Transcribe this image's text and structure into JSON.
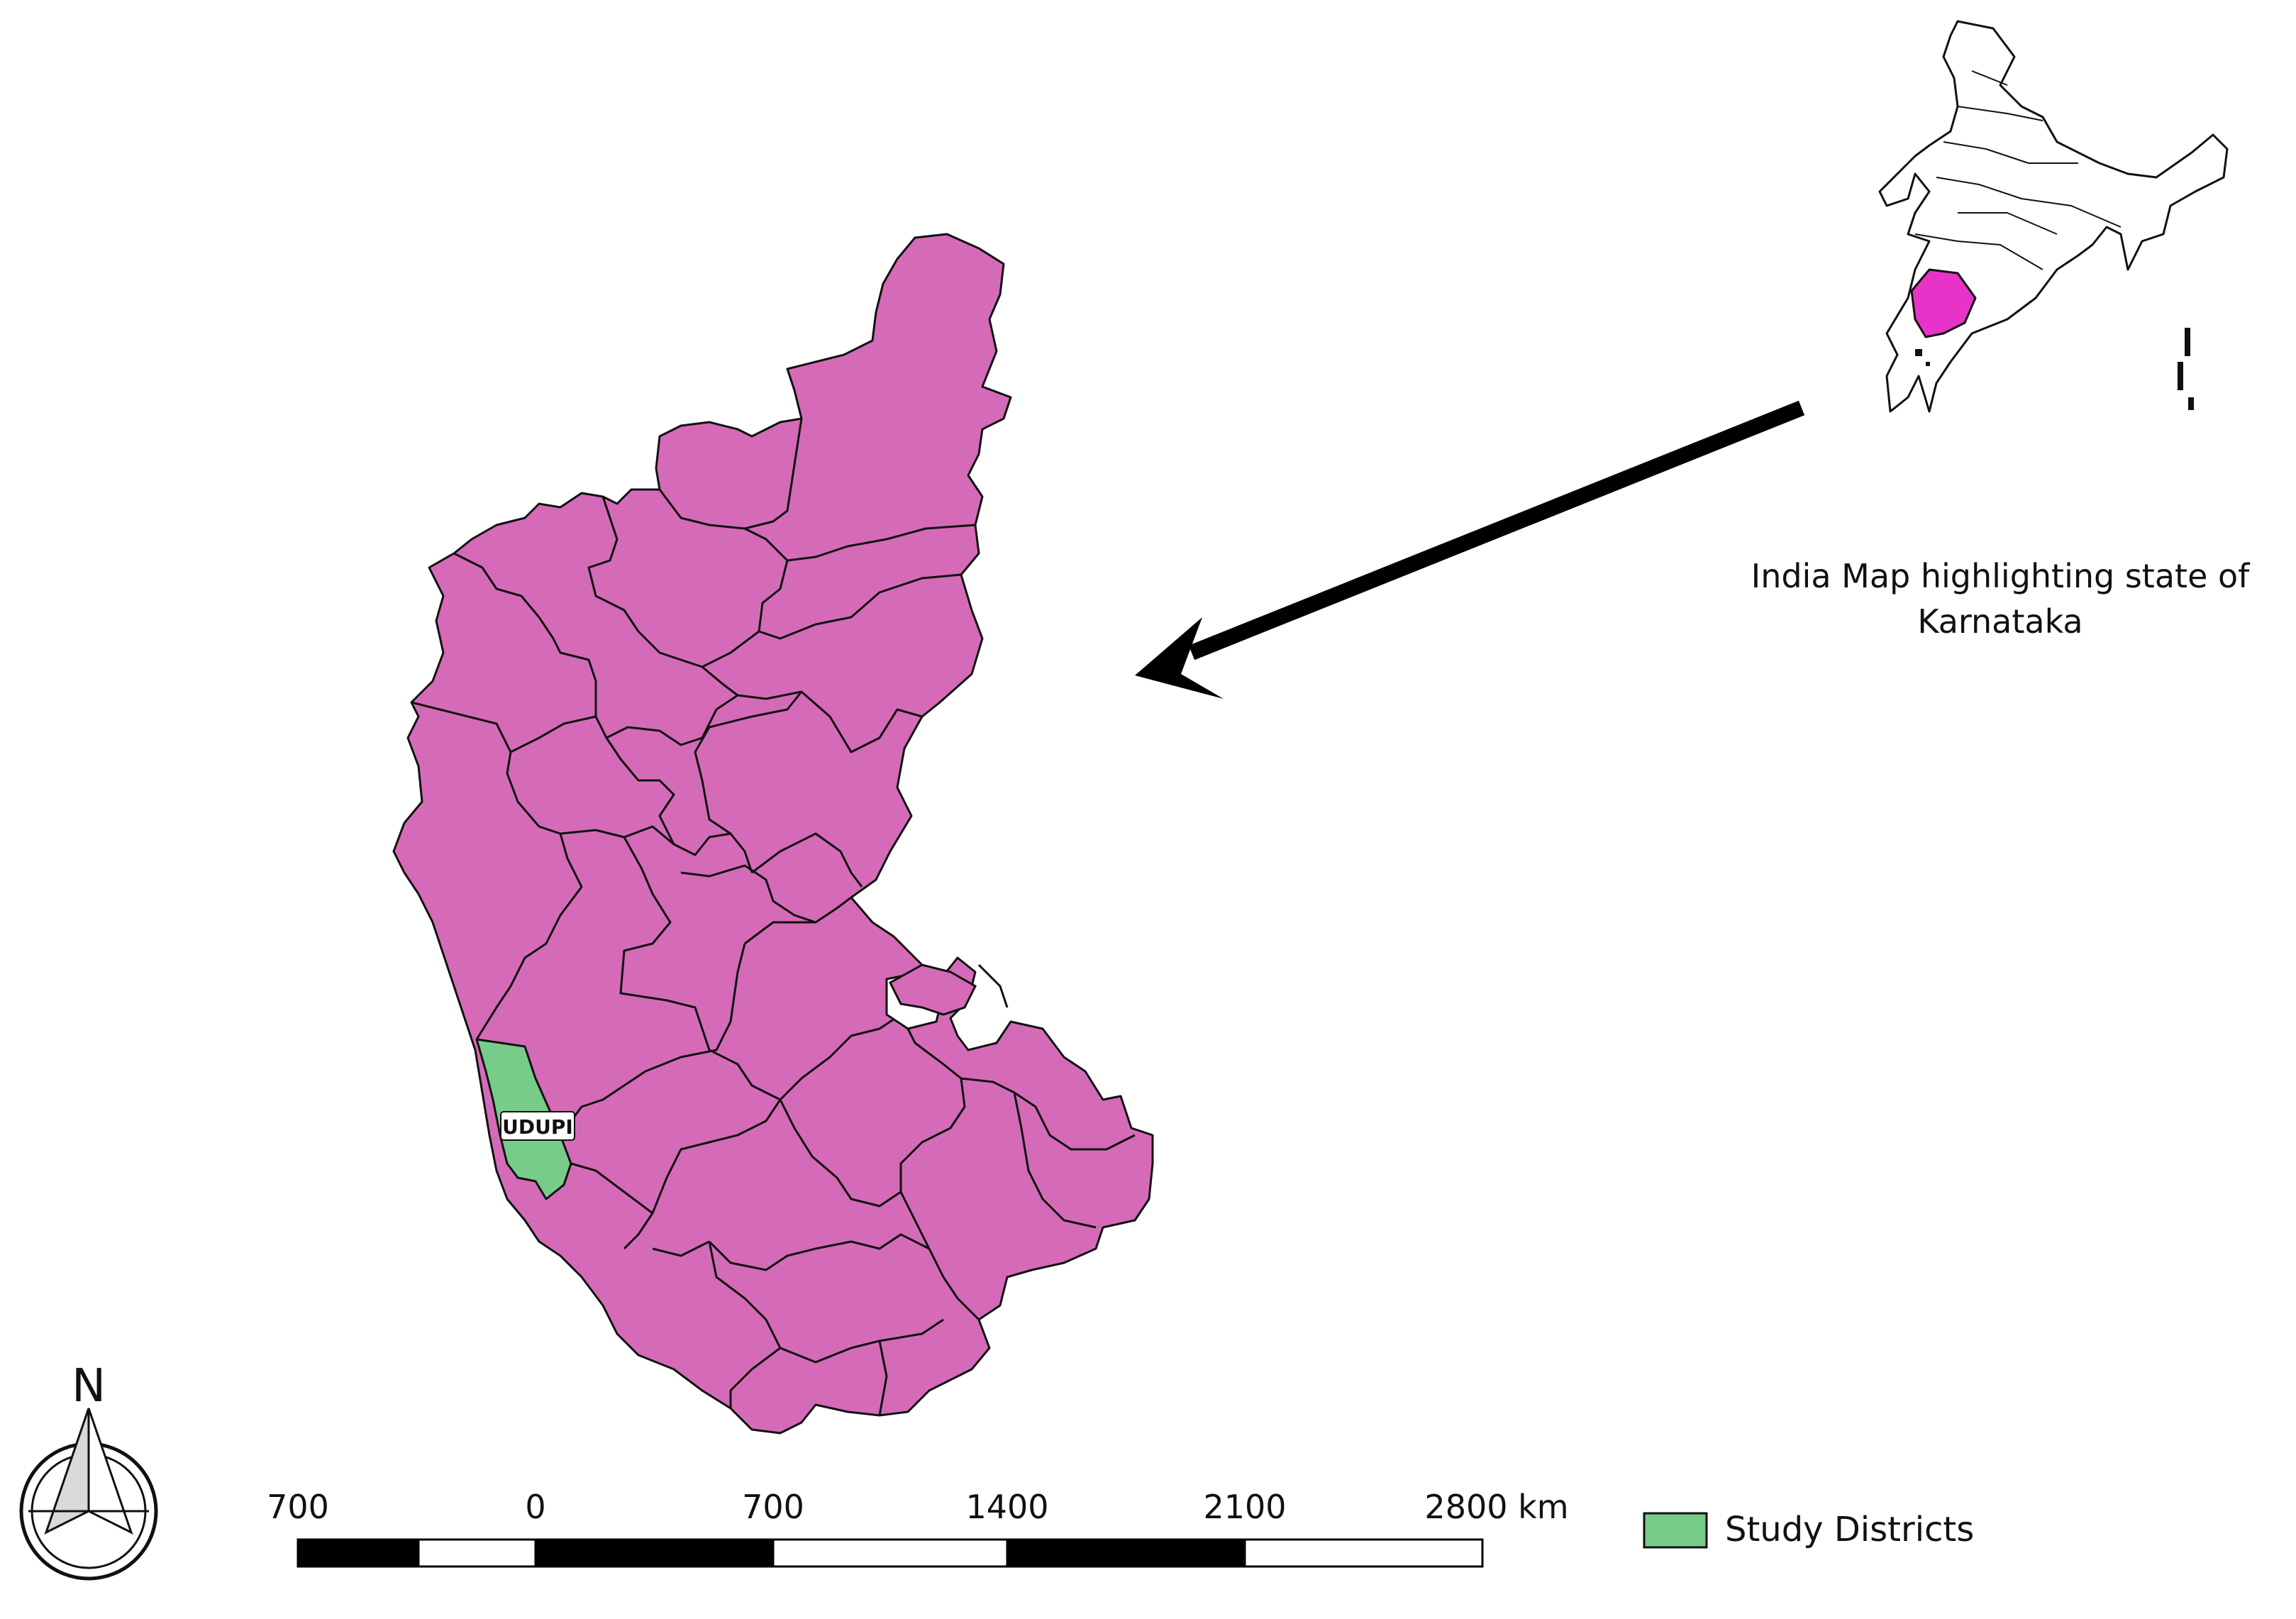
{
  "colors": {
    "district_fill": "#d56bb8",
    "study_fill": "#78cc8a",
    "inset_highlight": "#e833c8",
    "outline": "#111111"
  },
  "map": {
    "study_district_label": "UDUPI"
  },
  "inset": {
    "caption_line1": "India Map highlighting state of",
    "caption_line2": "Karnataka"
  },
  "north_arrow": {
    "letter": "N",
    "icon": "north-arrow-icon"
  },
  "scale_bar": {
    "ticks": [
      "700",
      "0",
      "700",
      "1400",
      "2100",
      "2800 km"
    ]
  },
  "legend": {
    "items": [
      {
        "label": "Study Districts",
        "color": "#78cc8a"
      }
    ]
  }
}
